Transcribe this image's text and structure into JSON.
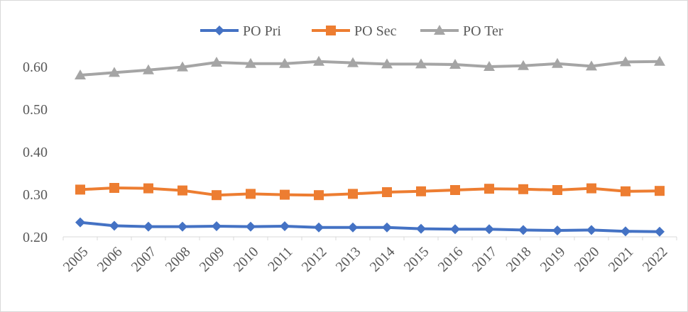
{
  "chart_data": {
    "type": "line",
    "title": "",
    "xlabel": "",
    "ylabel": "",
    "categories": [
      "2005",
      "2006",
      "2007",
      "2008",
      "2009",
      "2010",
      "2011",
      "2012",
      "2013",
      "2014",
      "2015",
      "2016",
      "2017",
      "2018",
      "2019",
      "2020",
      "2021",
      "2022"
    ],
    "y_ticks": [
      "0.20",
      "0.30",
      "0.40",
      "0.50",
      "0.60"
    ],
    "y_tick_values": [
      0.2,
      0.3,
      0.4,
      0.5,
      0.6
    ],
    "ylim": [
      0.2,
      0.6
    ],
    "grid": false,
    "legend_position": "top",
    "series": [
      {
        "name": "PO Pri",
        "color": "#4472c4",
        "marker": "diamond",
        "values": [
          0.234,
          0.226,
          0.224,
          0.224,
          0.225,
          0.224,
          0.225,
          0.222,
          0.222,
          0.222,
          0.219,
          0.218,
          0.218,
          0.216,
          0.215,
          0.216,
          0.213,
          0.212
        ]
      },
      {
        "name": "PO Sec",
        "color": "#ed7d31",
        "marker": "square",
        "values": [
          0.311,
          0.315,
          0.314,
          0.309,
          0.298,
          0.301,
          0.299,
          0.298,
          0.301,
          0.305,
          0.307,
          0.31,
          0.313,
          0.312,
          0.31,
          0.314,
          0.307,
          0.308
        ]
      },
      {
        "name": "PO Ter",
        "color": "#a5a5a5",
        "marker": "triangle",
        "values": [
          0.58,
          0.586,
          0.592,
          0.599,
          0.61,
          0.607,
          0.607,
          0.612,
          0.609,
          0.606,
          0.606,
          0.605,
          0.6,
          0.602,
          0.607,
          0.601,
          0.611,
          0.612
        ]
      }
    ]
  }
}
